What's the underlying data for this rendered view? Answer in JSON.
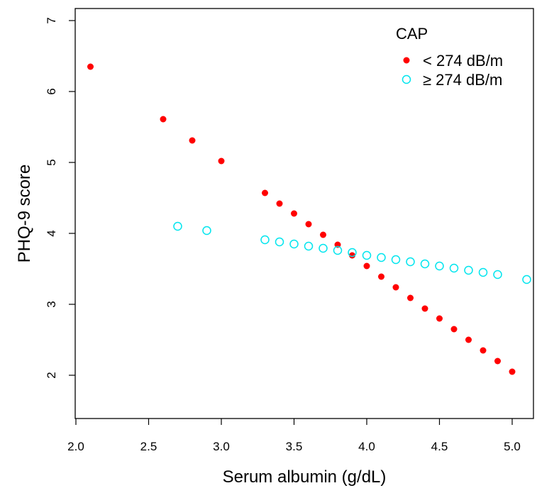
{
  "chart_data": {
    "type": "scatter",
    "title": "",
    "xlabel": "Serum albumin (g/dL)",
    "ylabel": "PHQ-9 score",
    "xlim": [
      2.0,
      5.1
    ],
    "ylim": [
      1.6,
      7.1
    ],
    "x_ticks": [
      2.0,
      2.5,
      3.0,
      3.5,
      4.0,
      4.5,
      5.0
    ],
    "x_tick_labels": [
      "2.0",
      "2.5",
      "3.0",
      "3.5",
      "4.0",
      "4.5",
      "5.0"
    ],
    "y_ticks": [
      2,
      3,
      4,
      5,
      6,
      7
    ],
    "y_tick_labels": [
      "2",
      "3",
      "4",
      "5",
      "6",
      "7"
    ],
    "grid": false,
    "legend": {
      "title": "CAP",
      "placement": "top-right"
    },
    "series": [
      {
        "name": "< 274 dB/m",
        "color": "#ff0000",
        "marker": "filled-circle",
        "points": [
          [
            2.1,
            6.35
          ],
          [
            2.6,
            5.61
          ],
          [
            2.8,
            5.31
          ],
          [
            3.0,
            5.02
          ],
          [
            3.3,
            4.57
          ],
          [
            3.4,
            4.42
          ],
          [
            3.5,
            4.28
          ],
          [
            3.6,
            4.13
          ],
          [
            3.7,
            3.98
          ],
          [
            3.8,
            3.84
          ],
          [
            3.9,
            3.69
          ],
          [
            4.0,
            3.54
          ],
          [
            4.1,
            3.39
          ],
          [
            4.2,
            3.24
          ],
          [
            4.3,
            3.09
          ],
          [
            4.4,
            2.94
          ],
          [
            4.5,
            2.8
          ],
          [
            4.6,
            2.65
          ],
          [
            4.7,
            2.5
          ],
          [
            4.8,
            2.35
          ],
          [
            4.9,
            2.2
          ],
          [
            5.0,
            2.05
          ]
        ]
      },
      {
        "name": "≥ 274 dB/m",
        "color": "#00e5ee",
        "marker": "open-circle",
        "points": [
          [
            2.7,
            4.1
          ],
          [
            2.9,
            4.04
          ],
          [
            3.3,
            3.91
          ],
          [
            3.4,
            3.88
          ],
          [
            3.5,
            3.85
          ],
          [
            3.6,
            3.82
          ],
          [
            3.7,
            3.79
          ],
          [
            3.8,
            3.76
          ],
          [
            3.9,
            3.73
          ],
          [
            4.0,
            3.69
          ],
          [
            4.1,
            3.66
          ],
          [
            4.2,
            3.63
          ],
          [
            4.3,
            3.6
          ],
          [
            4.4,
            3.57
          ],
          [
            4.5,
            3.54
          ],
          [
            4.6,
            3.51
          ],
          [
            4.7,
            3.48
          ],
          [
            4.8,
            3.45
          ],
          [
            4.9,
            3.42
          ],
          [
            5.1,
            3.35
          ]
        ]
      }
    ]
  }
}
